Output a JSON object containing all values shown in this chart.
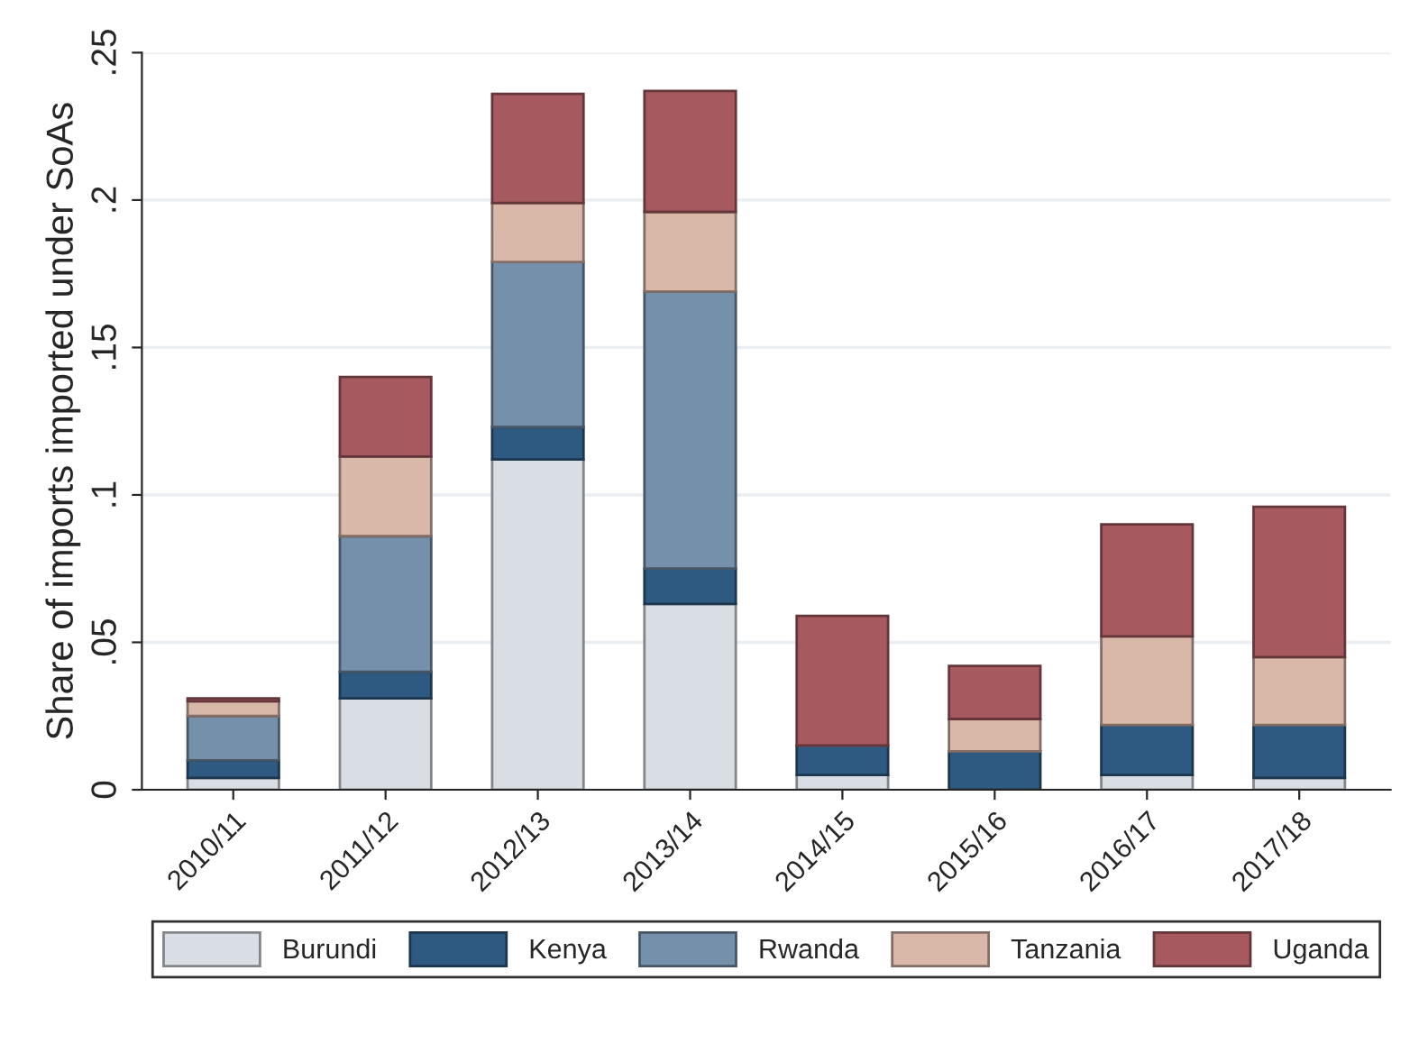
{
  "chart_data": {
    "type": "bar",
    "stacked": true,
    "ylabel": "Share of imports imported under SoAs",
    "categories": [
      "2010/11",
      "2011/12",
      "2012/13",
      "2013/14",
      "2014/15",
      "2015/16",
      "2016/17",
      "2017/18"
    ],
    "series": [
      {
        "name": "Burundi",
        "color": "#d9dee5",
        "values": [
          0.004,
          0.031,
          0.112,
          0.063,
          0.005,
          0,
          0.005,
          0.004
        ]
      },
      {
        "name": "Kenya",
        "color": "#2e5a82",
        "values": [
          0.006,
          0.009,
          0.011,
          0.012,
          0.01,
          0.013,
          0.017,
          0.018
        ]
      },
      {
        "name": "Rwanda",
        "color": "#7490ab",
        "values": [
          0.015,
          0.046,
          0.056,
          0.094,
          0,
          0,
          0,
          0
        ]
      },
      {
        "name": "Tanzania",
        "color": "#d9b8aa",
        "values": [
          0.005,
          0.027,
          0.02,
          0.027,
          0,
          0.011,
          0.03,
          0.023
        ]
      },
      {
        "name": "Uganda",
        "color": "#a65a60",
        "values": [
          0.001,
          0.027,
          0.037,
          0.041,
          0.044,
          0.018,
          0.038,
          0.051
        ]
      }
    ],
    "ylim": [
      0,
      0.25
    ],
    "yticks": [
      {
        "value": 0,
        "label": "0"
      },
      {
        "value": 0.05,
        "label": ".05"
      },
      {
        "value": 0.1,
        "label": ".1"
      },
      {
        "value": 0.15,
        "label": ".15"
      },
      {
        "value": 0.2,
        "label": ".2"
      },
      {
        "value": 0.25,
        "label": ".25"
      }
    ],
    "grid": "y",
    "legend": "bottom"
  }
}
